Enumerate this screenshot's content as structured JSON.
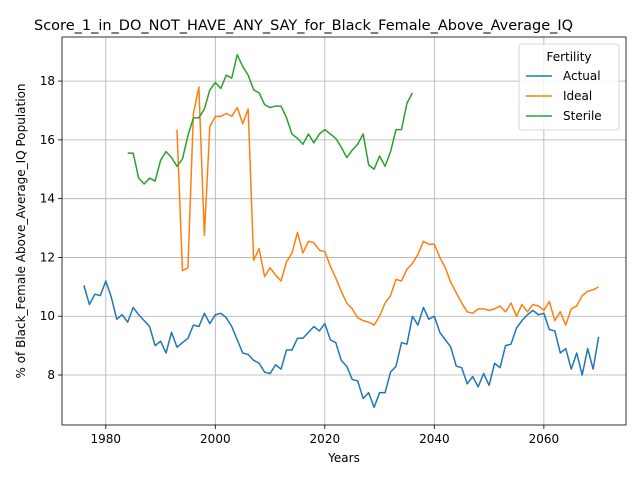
{
  "chart_data": {
    "type": "line",
    "title": "Score_1_in_DO_NOT_HAVE_ANY_SAY_for_Black_Female_Above_Average_IQ",
    "xlabel": "Years",
    "ylabel": "% of Black_Female Above_Average_IQ Population",
    "xlim": [
      1972,
      2075
    ],
    "ylim": [
      6.3,
      19.5
    ],
    "xticks": [
      1980,
      2000,
      2020,
      2040,
      2060
    ],
    "yticks": [
      8,
      10,
      12,
      14,
      16,
      18
    ],
    "grid": true,
    "legend": {
      "title": "Fertility",
      "placement": "top-right"
    },
    "series": [
      {
        "name": "Actual",
        "color": "#1f77b4",
        "x": [
          1976,
          1977,
          1978,
          1979,
          1980,
          1981,
          1982,
          1983,
          1984,
          1985,
          1986,
          1987,
          1988,
          1989,
          1990,
          1991,
          1992,
          1993,
          1994,
          1995,
          1996,
          1997,
          1998,
          1999,
          2000,
          2001,
          2002,
          2003,
          2004,
          2005,
          2006,
          2007,
          2008,
          2009,
          2010,
          2011,
          2012,
          2013,
          2014,
          2015,
          2016,
          2017,
          2018,
          2019,
          2020,
          2021,
          2022,
          2023,
          2024,
          2025,
          2026,
          2027,
          2028,
          2029,
          2030,
          2031,
          2032,
          2033,
          2034,
          2035,
          2036,
          2037,
          2038,
          2039,
          2040,
          2041,
          2042,
          2043,
          2044,
          2045,
          2046,
          2047,
          2048,
          2049,
          2050,
          2051,
          2052,
          2053,
          2054,
          2055,
          2056,
          2057,
          2058,
          2059,
          2060,
          2061,
          2062,
          2063,
          2064,
          2065,
          2066,
          2067,
          2068,
          2069,
          2070
        ],
        "y": [
          11.05,
          10.4,
          10.75,
          10.7,
          11.2,
          10.65,
          9.9,
          10.05,
          9.8,
          10.3,
          10.05,
          9.85,
          9.65,
          9.0,
          9.15,
          8.75,
          9.45,
          8.95,
          9.1,
          9.25,
          9.7,
          9.65,
          10.1,
          9.75,
          10.05,
          10.1,
          9.95,
          9.65,
          9.2,
          8.75,
          8.7,
          8.5,
          8.4,
          8.1,
          8.05,
          8.35,
          8.2,
          8.85,
          8.85,
          9.25,
          9.25,
          9.45,
          9.65,
          9.5,
          9.75,
          9.2,
          9.1,
          8.5,
          8.3,
          7.85,
          7.8,
          7.2,
          7.4,
          6.9,
          7.4,
          7.4,
          8.1,
          8.3,
          9.1,
          9.05,
          10.0,
          9.7,
          10.3,
          9.9,
          10.0,
          9.45,
          9.2,
          8.95,
          8.3,
          8.25,
          7.7,
          7.95,
          7.6,
          8.05,
          7.65,
          8.4,
          8.25,
          9.0,
          9.05,
          9.6,
          9.85,
          10.05,
          10.2,
          10.05,
          10.1,
          9.55,
          9.5,
          8.75,
          8.9,
          8.2,
          8.75,
          8.0,
          8.9,
          8.2,
          9.3
        ]
      },
      {
        "name": "Ideal",
        "color": "#ff7f0e",
        "x": [
          1993,
          1994,
          1995,
          1996,
          1997,
          1998,
          1999,
          2000,
          2001,
          2002,
          2003,
          2004,
          2005,
          2006,
          2007,
          2008,
          2009,
          2010,
          2011,
          2012,
          2013,
          2014,
          2015,
          2016,
          2017,
          2018,
          2019,
          2020,
          2021,
          2022,
          2023,
          2024,
          2025,
          2026,
          2027,
          2028,
          2029,
          2030,
          2031,
          2032,
          2033,
          2034,
          2035,
          2036,
          2037,
          2038,
          2039,
          2040,
          2041,
          2042,
          2043,
          2044,
          2045,
          2046,
          2047,
          2048,
          2049,
          2050,
          2051,
          2052,
          2053,
          2054,
          2055,
          2056,
          2057,
          2058,
          2059,
          2060,
          2061,
          2062,
          2063,
          2064,
          2065,
          2066,
          2067,
          2068,
          2069,
          2070
        ],
        "y": [
          16.35,
          11.55,
          11.65,
          16.9,
          17.8,
          12.75,
          16.45,
          16.8,
          16.8,
          16.9,
          16.8,
          17.1,
          16.55,
          17.05,
          11.9,
          12.3,
          11.35,
          11.65,
          11.4,
          11.2,
          11.85,
          12.15,
          12.85,
          12.15,
          12.55,
          12.5,
          12.25,
          12.2,
          11.7,
          11.3,
          10.85,
          10.45,
          10.25,
          9.95,
          9.85,
          9.8,
          9.7,
          10.0,
          10.45,
          10.7,
          11.25,
          11.2,
          11.6,
          11.8,
          12.1,
          12.55,
          12.45,
          12.45,
          12.0,
          11.65,
          11.15,
          10.8,
          10.45,
          10.15,
          10.1,
          10.25,
          10.25,
          10.2,
          10.25,
          10.35,
          10.15,
          10.45,
          10.0,
          10.4,
          10.15,
          10.4,
          10.35,
          10.2,
          10.5,
          9.85,
          10.15,
          9.7,
          10.25,
          10.35,
          10.7,
          10.85,
          10.9,
          11.0
        ]
      },
      {
        "name": "Sterile",
        "color": "#2ca02c",
        "x": [
          1984,
          1985,
          1986,
          1987,
          1988,
          1989,
          1990,
          1991,
          1992,
          1993,
          1994,
          1995,
          1996,
          1997,
          1998,
          1999,
          2000,
          2001,
          2002,
          2003,
          2004,
          2005,
          2006,
          2007,
          2008,
          2009,
          2010,
          2011,
          2012,
          2013,
          2014,
          2015,
          2016,
          2017,
          2018,
          2019,
          2020,
          2021,
          2022,
          2023,
          2024,
          2025,
          2026,
          2027,
          2028,
          2029,
          2030,
          2031,
          2032,
          2033,
          2034,
          2035,
          2036,
          2037
        ],
        "y": [
          15.55,
          15.55,
          14.7,
          14.5,
          14.7,
          14.6,
          15.3,
          15.6,
          15.4,
          15.1,
          15.35,
          16.15,
          16.75,
          16.75,
          17.05,
          17.7,
          17.95,
          17.75,
          18.2,
          18.1,
          18.9,
          18.5,
          18.2,
          17.7,
          17.6,
          17.2,
          17.1,
          17.15,
          17.15,
          16.75,
          16.2,
          16.05,
          15.85,
          16.2,
          15.9,
          16.2,
          16.35,
          16.2,
          16.05,
          15.75,
          15.4,
          15.65,
          15.85,
          16.2,
          15.15,
          15.0,
          15.45,
          15.1,
          15.6,
          16.35,
          16.35,
          17.25,
          17.6,
          null
        ]
      }
    ]
  }
}
